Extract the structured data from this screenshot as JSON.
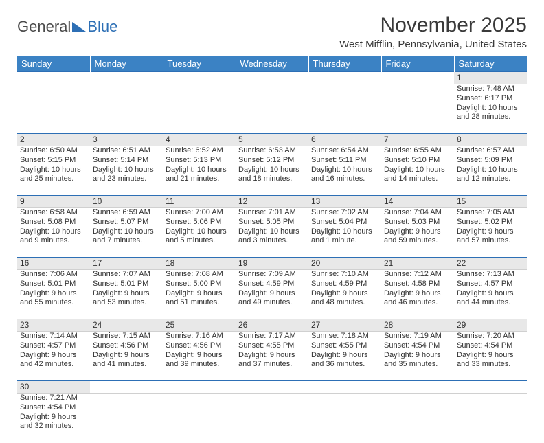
{
  "logo": {
    "part1": "General",
    "part2": "Blue"
  },
  "title": "November 2025",
  "location": "West Mifflin, Pennsylvania, United States",
  "colors": {
    "header_bg": "#3b82c4",
    "header_text": "#ffffff",
    "daynum_bg": "#e8e8e8",
    "border": "#2d6fb5",
    "text": "#333333",
    "logo_blue": "#2d6fb5",
    "logo_gray": "#4a4a4a",
    "page_bg": "#ffffff"
  },
  "typography": {
    "title_fontsize": 30,
    "location_fontsize": 15,
    "dayheader_fontsize": 13,
    "cell_fontsize": 11
  },
  "layout": {
    "columns": 7,
    "body_rows": 6,
    "first_day_column": 6
  },
  "day_headers": [
    "Sunday",
    "Monday",
    "Tuesday",
    "Wednesday",
    "Thursday",
    "Friday",
    "Saturday"
  ],
  "days": [
    {
      "n": "1",
      "sunrise": "Sunrise: 7:48 AM",
      "sunset": "Sunset: 6:17 PM",
      "daylight": "Daylight: 10 hours and 28 minutes."
    },
    {
      "n": "2",
      "sunrise": "Sunrise: 6:50 AM",
      "sunset": "Sunset: 5:15 PM",
      "daylight": "Daylight: 10 hours and 25 minutes."
    },
    {
      "n": "3",
      "sunrise": "Sunrise: 6:51 AM",
      "sunset": "Sunset: 5:14 PM",
      "daylight": "Daylight: 10 hours and 23 minutes."
    },
    {
      "n": "4",
      "sunrise": "Sunrise: 6:52 AM",
      "sunset": "Sunset: 5:13 PM",
      "daylight": "Daylight: 10 hours and 21 minutes."
    },
    {
      "n": "5",
      "sunrise": "Sunrise: 6:53 AM",
      "sunset": "Sunset: 5:12 PM",
      "daylight": "Daylight: 10 hours and 18 minutes."
    },
    {
      "n": "6",
      "sunrise": "Sunrise: 6:54 AM",
      "sunset": "Sunset: 5:11 PM",
      "daylight": "Daylight: 10 hours and 16 minutes."
    },
    {
      "n": "7",
      "sunrise": "Sunrise: 6:55 AM",
      "sunset": "Sunset: 5:10 PM",
      "daylight": "Daylight: 10 hours and 14 minutes."
    },
    {
      "n": "8",
      "sunrise": "Sunrise: 6:57 AM",
      "sunset": "Sunset: 5:09 PM",
      "daylight": "Daylight: 10 hours and 12 minutes."
    },
    {
      "n": "9",
      "sunrise": "Sunrise: 6:58 AM",
      "sunset": "Sunset: 5:08 PM",
      "daylight": "Daylight: 10 hours and 9 minutes."
    },
    {
      "n": "10",
      "sunrise": "Sunrise: 6:59 AM",
      "sunset": "Sunset: 5:07 PM",
      "daylight": "Daylight: 10 hours and 7 minutes."
    },
    {
      "n": "11",
      "sunrise": "Sunrise: 7:00 AM",
      "sunset": "Sunset: 5:06 PM",
      "daylight": "Daylight: 10 hours and 5 minutes."
    },
    {
      "n": "12",
      "sunrise": "Sunrise: 7:01 AM",
      "sunset": "Sunset: 5:05 PM",
      "daylight": "Daylight: 10 hours and 3 minutes."
    },
    {
      "n": "13",
      "sunrise": "Sunrise: 7:02 AM",
      "sunset": "Sunset: 5:04 PM",
      "daylight": "Daylight: 10 hours and 1 minute."
    },
    {
      "n": "14",
      "sunrise": "Sunrise: 7:04 AM",
      "sunset": "Sunset: 5:03 PM",
      "daylight": "Daylight: 9 hours and 59 minutes."
    },
    {
      "n": "15",
      "sunrise": "Sunrise: 7:05 AM",
      "sunset": "Sunset: 5:02 PM",
      "daylight": "Daylight: 9 hours and 57 minutes."
    },
    {
      "n": "16",
      "sunrise": "Sunrise: 7:06 AM",
      "sunset": "Sunset: 5:01 PM",
      "daylight": "Daylight: 9 hours and 55 minutes."
    },
    {
      "n": "17",
      "sunrise": "Sunrise: 7:07 AM",
      "sunset": "Sunset: 5:01 PM",
      "daylight": "Daylight: 9 hours and 53 minutes."
    },
    {
      "n": "18",
      "sunrise": "Sunrise: 7:08 AM",
      "sunset": "Sunset: 5:00 PM",
      "daylight": "Daylight: 9 hours and 51 minutes."
    },
    {
      "n": "19",
      "sunrise": "Sunrise: 7:09 AM",
      "sunset": "Sunset: 4:59 PM",
      "daylight": "Daylight: 9 hours and 49 minutes."
    },
    {
      "n": "20",
      "sunrise": "Sunrise: 7:10 AM",
      "sunset": "Sunset: 4:59 PM",
      "daylight": "Daylight: 9 hours and 48 minutes."
    },
    {
      "n": "21",
      "sunrise": "Sunrise: 7:12 AM",
      "sunset": "Sunset: 4:58 PM",
      "daylight": "Daylight: 9 hours and 46 minutes."
    },
    {
      "n": "22",
      "sunrise": "Sunrise: 7:13 AM",
      "sunset": "Sunset: 4:57 PM",
      "daylight": "Daylight: 9 hours and 44 minutes."
    },
    {
      "n": "23",
      "sunrise": "Sunrise: 7:14 AM",
      "sunset": "Sunset: 4:57 PM",
      "daylight": "Daylight: 9 hours and 42 minutes."
    },
    {
      "n": "24",
      "sunrise": "Sunrise: 7:15 AM",
      "sunset": "Sunset: 4:56 PM",
      "daylight": "Daylight: 9 hours and 41 minutes."
    },
    {
      "n": "25",
      "sunrise": "Sunrise: 7:16 AM",
      "sunset": "Sunset: 4:56 PM",
      "daylight": "Daylight: 9 hours and 39 minutes."
    },
    {
      "n": "26",
      "sunrise": "Sunrise: 7:17 AM",
      "sunset": "Sunset: 4:55 PM",
      "daylight": "Daylight: 9 hours and 37 minutes."
    },
    {
      "n": "27",
      "sunrise": "Sunrise: 7:18 AM",
      "sunset": "Sunset: 4:55 PM",
      "daylight": "Daylight: 9 hours and 36 minutes."
    },
    {
      "n": "28",
      "sunrise": "Sunrise: 7:19 AM",
      "sunset": "Sunset: 4:54 PM",
      "daylight": "Daylight: 9 hours and 35 minutes."
    },
    {
      "n": "29",
      "sunrise": "Sunrise: 7:20 AM",
      "sunset": "Sunset: 4:54 PM",
      "daylight": "Daylight: 9 hours and 33 minutes."
    },
    {
      "n": "30",
      "sunrise": "Sunrise: 7:21 AM",
      "sunset": "Sunset: 4:54 PM",
      "daylight": "Daylight: 9 hours and 32 minutes."
    }
  ]
}
